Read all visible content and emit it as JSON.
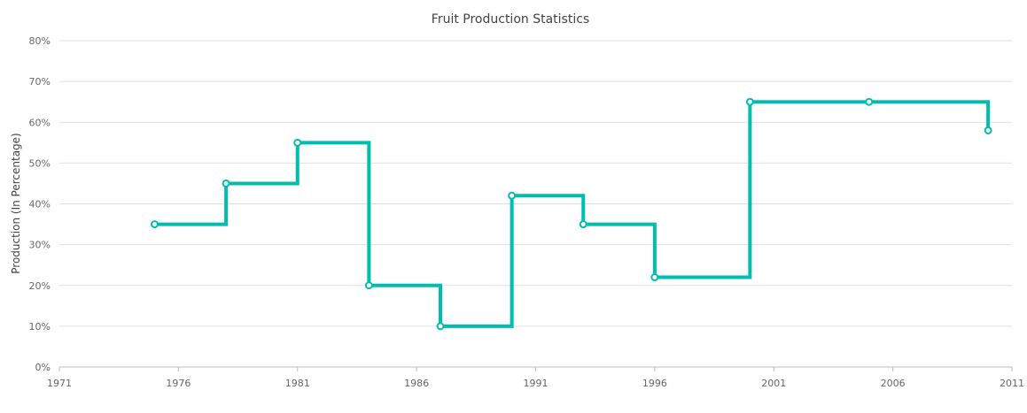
{
  "chart_data": {
    "type": "line",
    "line_style": "step",
    "title": "Fruit Production Statistics",
    "xlabel": "",
    "ylabel": "Production (In Percentage)",
    "x_ticks": [
      "1971",
      "1976",
      "1981",
      "1986",
      "1991",
      "1996",
      "2001",
      "2006",
      "2011"
    ],
    "y_ticks": [
      "0%",
      "10%",
      "20%",
      "30%",
      "40%",
      "50%",
      "60%",
      "70%",
      "80%"
    ],
    "xlim": [
      1971,
      2011
    ],
    "ylim": [
      0,
      80
    ],
    "grid": "horizontal",
    "series": [
      {
        "color": "#00bdae",
        "points": [
          {
            "x": 1975,
            "y": 35
          },
          {
            "x": 1978,
            "y": 45
          },
          {
            "x": 1981,
            "y": 55
          },
          {
            "x": 1984,
            "y": 20
          },
          {
            "x": 1987,
            "y": 10
          },
          {
            "x": 1990,
            "y": 42
          },
          {
            "x": 1993,
            "y": 35
          },
          {
            "x": 1996,
            "y": 22
          },
          {
            "x": 2000,
            "y": 65
          },
          {
            "x": 2005,
            "y": 65
          },
          {
            "x": 2010,
            "y": 58
          }
        ]
      }
    ]
  }
}
